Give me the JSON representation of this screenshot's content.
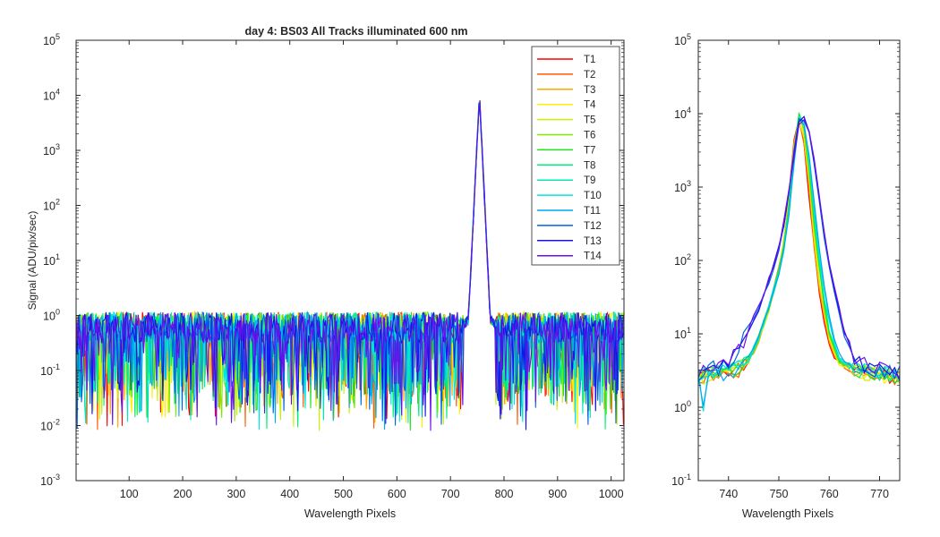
{
  "chart_data": [
    {
      "type": "line",
      "title": "day 4: BS03   All Tracks illuminated   600 nm",
      "xlabel": "Wavelength Pixels",
      "ylabel": "Signal (ADU/pix/sec)",
      "xlim": [
        1,
        1024
      ],
      "ylim": [
        0.001,
        100000
      ],
      "yscale": "log",
      "xticks": [
        "100",
        "200",
        "300",
        "400",
        "500",
        "600",
        "700",
        "800",
        "900",
        "1000"
      ],
      "yticks": [
        {
          "base": "10",
          "exp": "-3"
        },
        {
          "base": "10",
          "exp": "-2"
        },
        {
          "base": "10",
          "exp": "-1"
        },
        {
          "base": "10",
          "exp": "0"
        },
        {
          "base": "10",
          "exp": "1"
        },
        {
          "base": "10",
          "exp": "2"
        },
        {
          "base": "10",
          "exp": "3"
        },
        {
          "base": "10",
          "exp": "4"
        },
        {
          "base": "10",
          "exp": "5"
        }
      ],
      "legend_position": "top-right",
      "peak": {
        "x": 754,
        "y": 10000
      },
      "noise_floor": {
        "typical": 0.6,
        "max": 2.0,
        "min": 0.008
      }
    },
    {
      "type": "line",
      "xlabel": "Wavelength Pixels",
      "xlim": [
        734,
        774
      ],
      "ylim": [
        0.1,
        100000
      ],
      "yscale": "log",
      "xticks": [
        "740",
        "750",
        "760",
        "770"
      ],
      "yticks": [
        {
          "base": "10",
          "exp": "-1"
        },
        {
          "base": "10",
          "exp": "0"
        },
        {
          "base": "10",
          "exp": "1"
        },
        {
          "base": "10",
          "exp": "2"
        },
        {
          "base": "10",
          "exp": "3"
        },
        {
          "base": "10",
          "exp": "4"
        },
        {
          "base": "10",
          "exp": "5"
        }
      ],
      "profile": {
        "x": [
          734,
          736,
          738,
          740,
          742,
          744,
          745,
          746,
          747,
          748,
          749,
          750,
          751,
          752,
          753,
          754,
          755,
          756,
          757,
          758,
          759,
          760,
          761,
          762,
          764,
          766,
          768,
          770,
          772,
          774
        ],
        "y": [
          2.8,
          3.0,
          3.0,
          3.2,
          3.6,
          4.5,
          6,
          9,
          14,
          22,
          40,
          70,
          150,
          500,
          2500,
          10000,
          7000,
          2000,
          400,
          90,
          30,
          12,
          6.5,
          4.5,
          3.6,
          3.3,
          3.1,
          3.0,
          2.9,
          2.8
        ]
      }
    }
  ],
  "series": [
    {
      "name": "T1",
      "color": "#ff0000"
    },
    {
      "name": "T2",
      "color": "#ff5a00"
    },
    {
      "name": "T3",
      "color": "#ffa500"
    },
    {
      "name": "T4",
      "color": "#ffee00"
    },
    {
      "name": "T5",
      "color": "#c8f000"
    },
    {
      "name": "T6",
      "color": "#80e800"
    },
    {
      "name": "T7",
      "color": "#20e020"
    },
    {
      "name": "T8",
      "color": "#00f078"
    },
    {
      "name": "T9",
      "color": "#00e8b8"
    },
    {
      "name": "T10",
      "color": "#00e4e4"
    },
    {
      "name": "T11",
      "color": "#00a8f0"
    },
    {
      "name": "T12",
      "color": "#0064e0"
    },
    {
      "name": "T13",
      "color": "#1414e8"
    },
    {
      "name": "T14",
      "color": "#6a10e8"
    }
  ]
}
